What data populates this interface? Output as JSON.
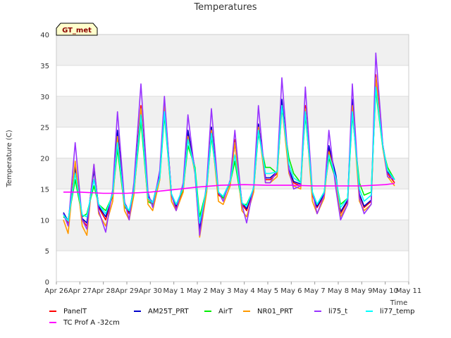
{
  "chart_data": {
    "type": "line",
    "title": "Temperatures",
    "xlabel": "Time",
    "ylabel": "Temperature (C)",
    "badge": "GT_met",
    "ylim": [
      0,
      40
    ],
    "yticks": [
      0,
      5,
      10,
      15,
      20,
      25,
      30,
      35,
      40
    ],
    "xlim": [
      0,
      15
    ],
    "xticks": [
      {
        "x": 0,
        "label": "Apr 26"
      },
      {
        "x": 1,
        "label": "Apr 27"
      },
      {
        "x": 2,
        "label": "Apr 28"
      },
      {
        "x": 3,
        "label": "Apr 29"
      },
      {
        "x": 4,
        "label": "Apr 30"
      },
      {
        "x": 5,
        "label": "May 1"
      },
      {
        "x": 6,
        "label": "May 2"
      },
      {
        "x": 7,
        "label": "May 3"
      },
      {
        "x": 8,
        "label": "May 4"
      },
      {
        "x": 9,
        "label": "May 5"
      },
      {
        "x": 10,
        "label": "May 6"
      },
      {
        "x": 11,
        "label": "May 7"
      },
      {
        "x": 12,
        "label": "May 8"
      },
      {
        "x": 13,
        "label": "May 9"
      },
      {
        "x": 14,
        "label": "May 10"
      },
      {
        "x": 15,
        "label": "May 11"
      }
    ],
    "grid": true,
    "legend_position": "bottom",
    "series": [
      {
        "name": "PanelT",
        "color": "#ff0000",
        "x": [
          0.3,
          0.5,
          0.8,
          1.1,
          1.3,
          1.6,
          1.8,
          2.1,
          2.4,
          2.6,
          2.9,
          3.1,
          3.3,
          3.6,
          3.9,
          4.1,
          4.4,
          4.6,
          4.9,
          5.1,
          5.4,
          5.6,
          5.9,
          6.1,
          6.4,
          6.6,
          6.9,
          7.1,
          7.4,
          7.6,
          7.9,
          8.1,
          8.4,
          8.6,
          8.9,
          9.1,
          9.4,
          9.6,
          9.9,
          10.1,
          10.4,
          10.6,
          10.9,
          11.1,
          11.4,
          11.6,
          11.9,
          12.1,
          12.4,
          12.6,
          12.9,
          13.1,
          13.4,
          13.6,
          13.9,
          14.1,
          14.4
        ],
        "values": [
          11.0,
          9.5,
          19.0,
          10.0,
          9.0,
          18.5,
          12.0,
          10.0,
          14.0,
          24.0,
          12.5,
          11.0,
          15.0,
          28.5,
          13.5,
          12.5,
          17.0,
          29.5,
          14.0,
          12.0,
          15.0,
          24.0,
          18.0,
          8.0,
          15.0,
          25.0,
          14.0,
          13.5,
          16.0,
          23.0,
          12.5,
          11.5,
          15.0,
          25.5,
          16.5,
          16.5,
          17.5,
          29.0,
          18.0,
          16.0,
          15.5,
          28.5,
          14.0,
          12.0,
          14.0,
          21.5,
          17.0,
          11.0,
          13.0,
          29.0,
          14.0,
          12.0,
          13.0,
          33.5,
          22.0,
          17.5,
          16.0
        ]
      },
      {
        "name": "AM25T_PRT",
        "color": "#0000cc",
        "x": [
          0.3,
          0.5,
          0.8,
          1.1,
          1.3,
          1.6,
          1.8,
          2.1,
          2.4,
          2.6,
          2.9,
          3.1,
          3.3,
          3.6,
          3.9,
          4.1,
          4.4,
          4.6,
          4.9,
          5.1,
          5.4,
          5.6,
          5.9,
          6.1,
          6.4,
          6.6,
          6.9,
          7.1,
          7.4,
          7.6,
          7.9,
          8.1,
          8.4,
          8.6,
          8.9,
          9.1,
          9.4,
          9.6,
          9.9,
          10.1,
          10.4,
          10.6,
          10.9,
          11.1,
          11.4,
          11.6,
          11.9,
          12.1,
          12.4,
          12.6,
          12.9,
          13.1,
          13.4,
          13.6,
          13.9,
          14.1,
          14.4
        ],
        "values": [
          11.2,
          9.8,
          18.5,
          10.2,
          9.5,
          18.0,
          12.2,
          10.5,
          14.5,
          24.5,
          12.8,
          11.3,
          15.2,
          28.0,
          13.8,
          12.8,
          17.2,
          29.0,
          14.2,
          12.3,
          15.2,
          24.5,
          18.2,
          8.5,
          15.2,
          25.0,
          14.2,
          13.8,
          16.2,
          22.5,
          12.8,
          11.8,
          15.2,
          25.5,
          16.8,
          16.8,
          17.8,
          29.5,
          18.2,
          16.2,
          15.8,
          28.0,
          14.2,
          12.2,
          14.2,
          22.0,
          17.2,
          11.3,
          13.2,
          29.5,
          14.2,
          12.2,
          13.2,
          32.5,
          22.0,
          17.8,
          16.5
        ]
      },
      {
        "name": "AirT",
        "color": "#00ee00",
        "x": [
          0.3,
          0.5,
          0.8,
          1.1,
          1.3,
          1.6,
          1.8,
          2.1,
          2.4,
          2.6,
          2.9,
          3.1,
          3.3,
          3.6,
          3.9,
          4.1,
          4.4,
          4.6,
          4.9,
          5.1,
          5.4,
          5.6,
          5.9,
          6.1,
          6.4,
          6.6,
          6.9,
          7.1,
          7.4,
          7.6,
          7.9,
          8.1,
          8.4,
          8.6,
          8.9,
          9.1,
          9.4,
          9.6,
          9.9,
          10.1,
          10.4,
          10.6,
          10.9,
          11.1,
          11.4,
          11.6,
          11.9,
          12.1,
          12.4,
          12.6,
          12.9,
          13.1,
          13.4,
          13.6,
          13.9,
          14.1,
          14.4
        ],
        "values": [
          10.5,
          10.0,
          16.5,
          10.5,
          11.0,
          15.5,
          12.5,
          11.5,
          14.0,
          21.5,
          12.0,
          11.5,
          14.5,
          26.0,
          13.0,
          12.5,
          16.5,
          27.0,
          14.0,
          12.5,
          15.0,
          22.0,
          18.5,
          10.5,
          15.0,
          23.5,
          14.5,
          13.5,
          16.0,
          19.5,
          12.5,
          12.5,
          15.0,
          24.0,
          18.5,
          18.5,
          17.5,
          28.0,
          20.0,
          17.5,
          16.0,
          27.0,
          14.5,
          12.5,
          14.5,
          20.0,
          16.5,
          12.5,
          13.5,
          27.0,
          16.0,
          14.0,
          14.5,
          31.0,
          21.5,
          18.5,
          16.5
        ]
      },
      {
        "name": "NR01_PRT",
        "color": "#ff9900",
        "x": [
          0.3,
          0.5,
          0.8,
          1.1,
          1.3,
          1.6,
          1.8,
          2.1,
          2.4,
          2.6,
          2.9,
          3.1,
          3.3,
          3.6,
          3.9,
          4.1,
          4.4,
          4.6,
          4.9,
          5.1,
          5.4,
          5.6,
          5.9,
          6.1,
          6.4,
          6.6,
          6.9,
          7.1,
          7.4,
          7.6,
          7.9,
          8.1,
          8.4,
          8.6,
          8.9,
          9.1,
          9.4,
          9.6,
          9.9,
          10.1,
          10.4,
          10.6,
          10.9,
          11.1,
          11.4,
          11.6,
          11.9,
          12.1,
          12.4,
          12.6,
          12.9,
          13.1,
          13.4,
          13.6,
          13.9,
          14.1,
          14.4
        ],
        "values": [
          10.0,
          7.8,
          19.5,
          9.0,
          7.5,
          19.0,
          11.0,
          9.0,
          13.0,
          23.5,
          11.5,
          10.0,
          14.0,
          28.0,
          12.5,
          11.5,
          16.5,
          29.0,
          13.0,
          11.5,
          14.5,
          23.5,
          17.5,
          7.2,
          14.5,
          24.5,
          13.0,
          12.5,
          15.5,
          22.5,
          11.5,
          10.5,
          14.5,
          25.0,
          16.0,
          16.0,
          17.0,
          28.5,
          17.5,
          15.5,
          15.0,
          28.0,
          13.0,
          11.0,
          13.5,
          21.0,
          16.5,
          10.5,
          12.5,
          28.5,
          13.0,
          11.5,
          12.5,
          33.0,
          21.5,
          17.0,
          15.5
        ]
      },
      {
        "name": "li75_t",
        "color": "#9933ff",
        "x": [
          0.3,
          0.5,
          0.8,
          1.1,
          1.3,
          1.6,
          1.8,
          2.1,
          2.4,
          2.6,
          2.9,
          3.1,
          3.3,
          3.6,
          3.9,
          4.1,
          4.4,
          4.6,
          4.9,
          5.1,
          5.4,
          5.6,
          5.9,
          6.1,
          6.4,
          6.6,
          6.9,
          7.1,
          7.4,
          7.6,
          7.9,
          8.1,
          8.4,
          8.6,
          8.9,
          9.1,
          9.4,
          9.6,
          9.9,
          10.1,
          10.4,
          10.6,
          10.9,
          11.1,
          11.4,
          11.6,
          11.9,
          12.1,
          12.4,
          12.6,
          12.9,
          13.1,
          13.4,
          13.6,
          13.9,
          14.1,
          14.4
        ],
        "values": [
          11.0,
          9.0,
          22.5,
          10.0,
          8.5,
          19.0,
          11.5,
          8.0,
          15.0,
          27.5,
          13.0,
          10.0,
          16.0,
          32.0,
          14.5,
          12.0,
          18.0,
          30.0,
          14.0,
          11.5,
          16.0,
          27.0,
          17.5,
          7.5,
          16.0,
          28.0,
          14.5,
          13.0,
          16.5,
          24.5,
          12.5,
          9.5,
          15.5,
          28.5,
          16.0,
          16.0,
          18.0,
          33.0,
          18.0,
          15.0,
          15.5,
          31.5,
          14.5,
          11.0,
          14.0,
          24.5,
          15.0,
          10.0,
          12.5,
          32.0,
          13.5,
          11.0,
          12.5,
          37.0,
          22.0,
          17.0,
          16.5
        ]
      },
      {
        "name": "li77_temp",
        "color": "#00ffff",
        "x": [
          0.3,
          0.5,
          0.8,
          1.1,
          1.3,
          1.6,
          1.8,
          2.1,
          2.4,
          2.6,
          2.9,
          3.1,
          3.3,
          3.6,
          3.9,
          4.1,
          4.4,
          4.6,
          4.9,
          5.1,
          5.4,
          5.6,
          5.9,
          6.1,
          6.4,
          6.6,
          6.9,
          7.1,
          7.4,
          7.6,
          7.9,
          8.1,
          8.4,
          8.6,
          8.9,
          9.1,
          9.4,
          9.6,
          9.9,
          10.1,
          10.4,
          10.6,
          10.9,
          11.1,
          11.4,
          11.6,
          11.9,
          12.1,
          12.4,
          12.6,
          12.9,
          13.1,
          13.4,
          13.6,
          13.9,
          14.1,
          14.4
        ],
        "values": [
          10.8,
          9.8,
          17.5,
          10.8,
          10.5,
          16.5,
          12.5,
          11.0,
          14.2,
          22.5,
          12.5,
          11.5,
          14.8,
          27.0,
          13.5,
          12.8,
          16.8,
          27.5,
          14.2,
          12.5,
          15.2,
          23.0,
          18.0,
          9.5,
          15.2,
          24.0,
          14.5,
          13.8,
          16.2,
          20.5,
          12.8,
          12.2,
          15.2,
          24.5,
          17.5,
          17.5,
          17.8,
          28.5,
          19.0,
          16.8,
          16.0,
          27.5,
          14.5,
          12.5,
          14.5,
          20.5,
          16.8,
          12.0,
          13.5,
          27.5,
          15.0,
          13.0,
          14.0,
          31.5,
          21.8,
          18.0,
          16.5
        ]
      },
      {
        "name": "TC Prof A -32cm",
        "color": "#ff00ff",
        "x": [
          0.3,
          1.0,
          2.0,
          3.0,
          4.0,
          5.0,
          6.0,
          7.0,
          8.0,
          9.0,
          10.0,
          11.0,
          12.0,
          13.0,
          14.0,
          14.4
        ],
        "values": [
          14.5,
          14.5,
          14.3,
          14.3,
          14.5,
          14.9,
          15.3,
          15.6,
          15.7,
          15.6,
          15.6,
          15.5,
          15.5,
          15.5,
          15.7,
          15.9
        ]
      }
    ]
  }
}
